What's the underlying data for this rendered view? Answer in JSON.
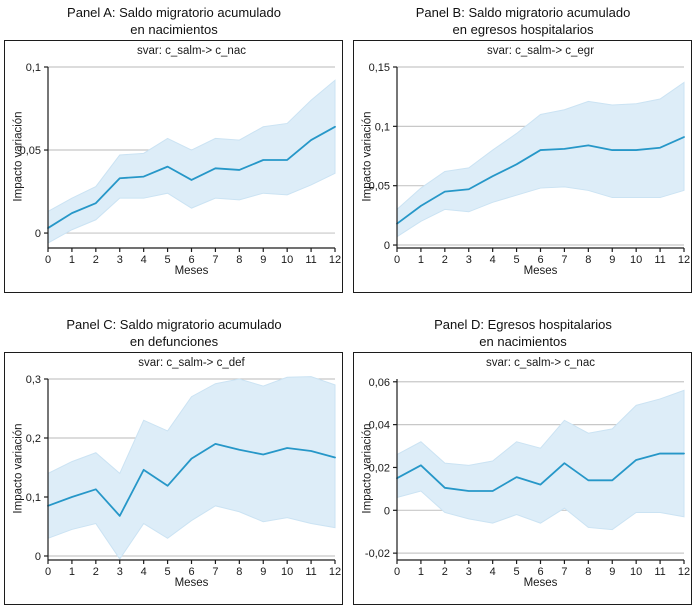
{
  "style": {
    "line_color": "#2697c8",
    "band_fill": "#ddedf8",
    "band_stroke": "#cbe3f3",
    "grid_color": "#c8c8c8",
    "axis_color": "#1c1c1c",
    "text_color": "#1a1a1a",
    "background": "#ffffff"
  },
  "chart_data": [
    {
      "type": "line",
      "panel": "A",
      "title_line1": "Panel A: Saldo migratorio acumulado",
      "title_line2": "en nacimientos",
      "subtitle": "svar: c_salm-> c_nac",
      "xlabel": "Meses",
      "ylabel": "Impacto variación",
      "legend": "none",
      "grid": true,
      "x": [
        0,
        1,
        2,
        3,
        4,
        5,
        6,
        7,
        8,
        9,
        10,
        11,
        12
      ],
      "xtick_labels": [
        "0",
        "1",
        "2",
        "3",
        "4",
        "5",
        "6",
        "7",
        "8",
        "9",
        "10",
        "11",
        "12"
      ],
      "line": [
        0.003,
        0.012,
        0.018,
        0.033,
        0.034,
        0.04,
        0.032,
        0.039,
        0.038,
        0.044,
        0.044,
        0.056,
        0.064
      ],
      "band_upper": [
        0.013,
        0.021,
        0.028,
        0.047,
        0.048,
        0.057,
        0.05,
        0.057,
        0.056,
        0.064,
        0.066,
        0.08,
        0.092
      ],
      "band_lower": [
        -0.006,
        0.002,
        0.008,
        0.021,
        0.021,
        0.024,
        0.015,
        0.021,
        0.02,
        0.024,
        0.023,
        0.029,
        0.036
      ],
      "yticks": [
        0,
        0.05,
        0.1
      ],
      "ytick_labels": [
        "0",
        "0,05",
        "0,1"
      ],
      "ylim": [
        -0.009,
        0.1
      ],
      "xlim": [
        0,
        12
      ]
    },
    {
      "type": "line",
      "panel": "B",
      "title_line1": "Panel B: Saldo migratorio acumulado",
      "title_line2": "en egresos hospitalarios",
      "subtitle": "svar: c_salm-> c_egr",
      "xlabel": "Meses",
      "ylabel": "Impacto variación",
      "legend": "none",
      "grid": true,
      "x": [
        0,
        1,
        2,
        3,
        4,
        5,
        6,
        7,
        8,
        9,
        10,
        11,
        12
      ],
      "xtick_labels": [
        "0",
        "1",
        "2",
        "3",
        "4",
        "5",
        "6",
        "7",
        "8",
        "9",
        "10",
        "11",
        "12"
      ],
      "line": [
        0.018,
        0.033,
        0.045,
        0.047,
        0.058,
        0.068,
        0.08,
        0.081,
        0.084,
        0.08,
        0.08,
        0.082,
        0.091
      ],
      "band_upper": [
        0.03,
        0.048,
        0.062,
        0.065,
        0.08,
        0.094,
        0.11,
        0.114,
        0.121,
        0.118,
        0.119,
        0.123,
        0.137
      ],
      "band_lower": [
        0.007,
        0.02,
        0.03,
        0.028,
        0.036,
        0.042,
        0.048,
        0.049,
        0.046,
        0.04,
        0.04,
        0.04,
        0.046
      ],
      "yticks": [
        0,
        0.05,
        0.1,
        0.15
      ],
      "ytick_labels": [
        "0",
        "0,05",
        "0,1",
        "0,15"
      ],
      "ylim": [
        -0.0025,
        0.15
      ],
      "xlim": [
        0,
        12
      ]
    },
    {
      "type": "line",
      "panel": "C",
      "title_line1": "Panel C: Saldo migratorio acumulado",
      "title_line2": "en defunciones",
      "subtitle": "svar: c_salm-> c_def",
      "xlabel": "Meses",
      "ylabel": "Impacto variación",
      "legend": "none",
      "grid": true,
      "x": [
        0,
        1,
        2,
        3,
        4,
        5,
        6,
        7,
        8,
        9,
        10,
        11,
        12
      ],
      "xtick_labels": [
        "0",
        "1",
        "2",
        "3",
        "4",
        "5",
        "6",
        "7",
        "8",
        "9",
        "10",
        "11",
        "12"
      ],
      "line": [
        0.085,
        0.1,
        0.113,
        0.068,
        0.146,
        0.119,
        0.165,
        0.19,
        0.18,
        0.172,
        0.183,
        0.178,
        0.167
      ],
      "band_upper": [
        0.14,
        0.16,
        0.175,
        0.14,
        0.23,
        0.212,
        0.27,
        0.292,
        0.3,
        0.288,
        0.303,
        0.304,
        0.29
      ],
      "band_lower": [
        0.03,
        0.045,
        0.055,
        -0.005,
        0.055,
        0.03,
        0.06,
        0.085,
        0.075,
        0.058,
        0.065,
        0.055,
        0.048
      ],
      "yticks": [
        0,
        0.1,
        0.2,
        0.3
      ],
      "ytick_labels": [
        "0",
        "0,1",
        "0,2",
        "0,3"
      ],
      "ylim": [
        -0.0068,
        0.3
      ],
      "xlim": [
        0,
        12
      ]
    },
    {
      "type": "line",
      "panel": "D",
      "title_line1": "Panel D: Egresos hospitalarios",
      "title_line2": "en nacimientos",
      "subtitle": "svar: c_salm-> c_nac",
      "xlabel": "Meses",
      "ylabel": "Impacto variación",
      "legend": "none",
      "grid": true,
      "x": [
        0,
        1,
        2,
        3,
        4,
        5,
        6,
        7,
        8,
        9,
        10,
        11,
        12
      ],
      "xtick_labels": [
        "0",
        "1",
        "2",
        "3",
        "4",
        "5",
        "6",
        "7",
        "8",
        "9",
        "10",
        "11",
        "12"
      ],
      "line": [
        0.015,
        0.021,
        0.0105,
        0.009,
        0.009,
        0.0155,
        0.012,
        0.022,
        0.014,
        0.014,
        0.0235,
        0.0265,
        0.0265
      ],
      "band_upper": [
        0.026,
        0.032,
        0.022,
        0.021,
        0.023,
        0.032,
        0.029,
        0.042,
        0.036,
        0.038,
        0.049,
        0.052,
        0.056
      ],
      "band_lower": [
        0.006,
        0.009,
        -0.001,
        -0.004,
        -0.006,
        -0.002,
        -0.006,
        0.001,
        -0.008,
        -0.009,
        -0.001,
        -0.001,
        -0.003
      ],
      "yticks": [
        -0.02,
        0,
        0.02,
        0.04,
        0.06
      ],
      "ytick_labels": [
        "-0,02",
        "0",
        "0,02",
        "0,04",
        "0,06"
      ],
      "ylim": [
        -0.0232,
        0.0613
      ],
      "xlim": [
        0,
        12
      ]
    }
  ]
}
